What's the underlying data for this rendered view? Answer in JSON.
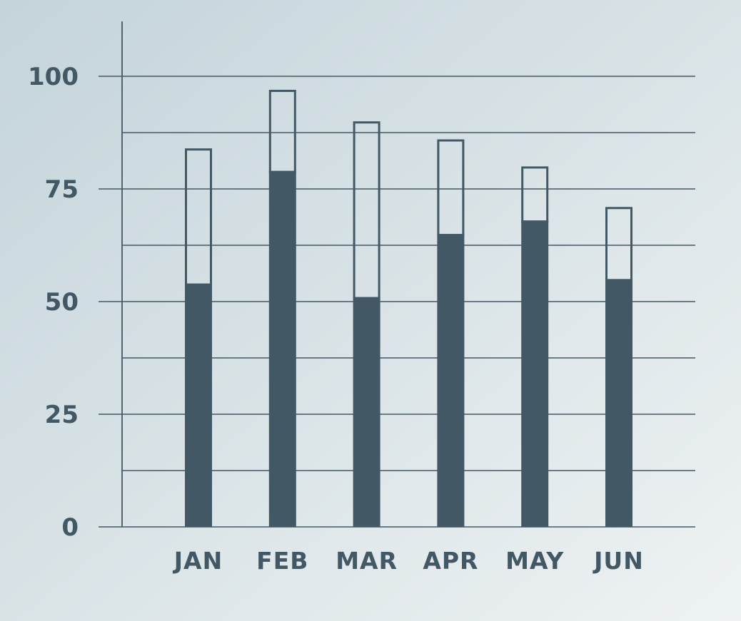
{
  "chart_data": {
    "type": "bar",
    "categories": [
      "JAN",
      "FEB",
      "MAR",
      "APR",
      "MAY",
      "JUN"
    ],
    "series": [
      {
        "values": [
          54,
          79,
          51,
          65,
          68,
          55
        ]
      },
      {
        "values": [
          84,
          97,
          90,
          86,
          80,
          71
        ]
      }
    ],
    "y_ticks": [
      "0",
      "25",
      "50",
      "75",
      "100"
    ],
    "ylim": [
      0,
      112
    ],
    "ytick_step": 25,
    "minor_grid_step": 12.5,
    "grid": true,
    "legend": "none",
    "colors": {
      "background_start": "#c4d4da",
      "background_end": "#eef2f3",
      "bar": "#435865",
      "axis": "#435865",
      "grid": "#435865",
      "text": "#435865"
    }
  }
}
